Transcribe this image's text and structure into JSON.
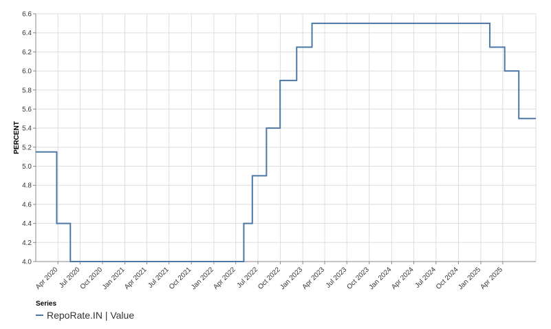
{
  "chart_data": {
    "type": "line",
    "ylabel": "PERCENT",
    "xlabel": "",
    "ylim": [
      4.0,
      6.6
    ],
    "yticks": [
      "4.0",
      "4.2",
      "4.4",
      "4.6",
      "4.8",
      "5.0",
      "5.2",
      "5.4",
      "5.6",
      "5.8",
      "6.0",
      "6.2",
      "6.4",
      "6.6"
    ],
    "x_range": [
      "2020-01-01",
      "2025-08-15"
    ],
    "xticks": [
      {
        "date": "2020-04-01",
        "label": "Apr 2020"
      },
      {
        "date": "2020-07-01",
        "label": "Jul 2020"
      },
      {
        "date": "2020-10-01",
        "label": "Oct 2020"
      },
      {
        "date": "2021-01-01",
        "label": "Jan 2021"
      },
      {
        "date": "2021-04-01",
        "label": "Apr 2021"
      },
      {
        "date": "2021-07-01",
        "label": "Jul 2021"
      },
      {
        "date": "2021-10-01",
        "label": "Oct 2021"
      },
      {
        "date": "2022-01-01",
        "label": "Jan 2022"
      },
      {
        "date": "2022-04-01",
        "label": "Apr 2022"
      },
      {
        "date": "2022-07-01",
        "label": "Jul 2022"
      },
      {
        "date": "2022-10-01",
        "label": "Oct 2022"
      },
      {
        "date": "2023-01-01",
        "label": "Jan 2023"
      },
      {
        "date": "2023-04-01",
        "label": "Apr 2023"
      },
      {
        "date": "2023-07-01",
        "label": "Jul 2023"
      },
      {
        "date": "2023-10-01",
        "label": "Oct 2023"
      },
      {
        "date": "2024-01-01",
        "label": "Jan 2024"
      },
      {
        "date": "2024-04-01",
        "label": "Apr 2024"
      },
      {
        "date": "2024-07-01",
        "label": "Jul 2024"
      },
      {
        "date": "2024-10-01",
        "label": "Oct 2024"
      },
      {
        "date": "2025-01-01",
        "label": "Jan 2025"
      },
      {
        "date": "2025-04-01",
        "label": "Apr 2025"
      }
    ],
    "grid": true,
    "legend_position": "bottom-left",
    "series": [
      {
        "name": "RepoRate.IN | Value",
        "color": "#4c78a8",
        "step": true,
        "points": [
          {
            "x": "2020-01-01",
            "y": 5.15
          },
          {
            "x": "2020-03-27",
            "y": 4.4
          },
          {
            "x": "2020-05-22",
            "y": 4.0
          },
          {
            "x": "2022-05-04",
            "y": 4.4
          },
          {
            "x": "2022-06-08",
            "y": 4.9
          },
          {
            "x": "2022-08-05",
            "y": 5.4
          },
          {
            "x": "2022-09-30",
            "y": 5.9
          },
          {
            "x": "2022-12-07",
            "y": 6.25
          },
          {
            "x": "2023-02-08",
            "y": 6.5
          },
          {
            "x": "2025-02-07",
            "y": 6.25
          },
          {
            "x": "2025-04-09",
            "y": 6.0
          },
          {
            "x": "2025-06-06",
            "y": 5.5
          },
          {
            "x": "2025-08-15",
            "y": 5.5
          }
        ]
      }
    ]
  },
  "legend": {
    "title": "Series",
    "items": [
      {
        "label": "RepoRate.IN | Value",
        "color": "#4c78a8"
      }
    ]
  }
}
